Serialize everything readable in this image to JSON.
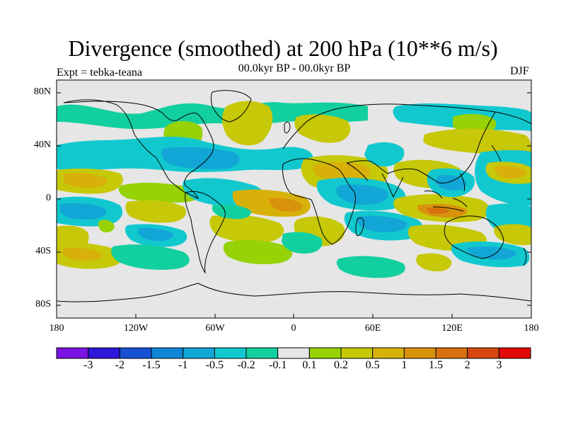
{
  "title": "Divergence (smoothed) at 200 hPa (10**6 m/s)",
  "subtitle_left": "Expt = tebka-teana",
  "subtitle_center": "00.0kyr BP - 00.0kyr BP",
  "subtitle_right": "DJF",
  "axes": {
    "y_ticks": [
      "80N",
      "40N",
      "0",
      "40S",
      "80S"
    ],
    "x_ticks": [
      "180",
      "120W",
      "60W",
      "0",
      "60E",
      "120E",
      "180"
    ]
  },
  "colorbar": {
    "colors": [
      "#7a13e3",
      "#2d17d8",
      "#1651d3",
      "#0f86d5",
      "#12a6d6",
      "#12c8cf",
      "#12cfa0",
      "#e6e6e6",
      "#96d206",
      "#c6c808",
      "#d7b10a",
      "#d9920c",
      "#d8700e",
      "#d84710",
      "#e20808"
    ],
    "labels": [
      "-3",
      "-2",
      "-1.5",
      "-1",
      "-0.5",
      "-0.2",
      "-0.1",
      "0.1",
      "0.2",
      "0.5",
      "1",
      "1.5",
      "2",
      "3"
    ]
  },
  "palette": {
    "neutral": "#e6e6e6",
    "pos_weak": "#96d206",
    "pos_mid": "#c6c808",
    "pos_strong": "#d7b10a",
    "pos_stronger": "#d9920c",
    "neg_weak": "#12cfa0",
    "neg_mid": "#12c8cf",
    "neg_strong": "#12a6d6",
    "neg_stronger": "#0f86d5"
  }
}
